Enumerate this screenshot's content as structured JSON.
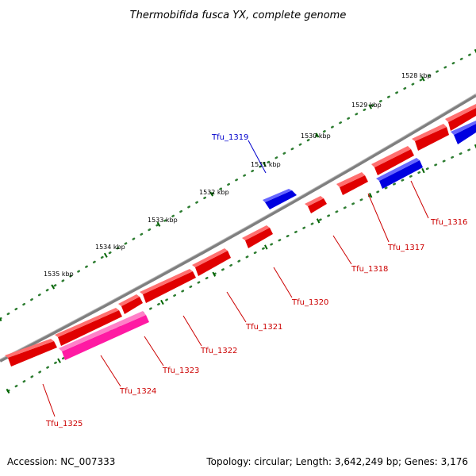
{
  "title": "Thermobifida fusca YX, complete genome",
  "accession": "Accession: NC_007333",
  "topology": "Topology: circular; Length: 3,642,249 bp; Genes: 3,176",
  "colors": {
    "forward_gene": "#ff0000",
    "reverse_gene": "#0000ff",
    "highlight_gene": "#ff1aa3",
    "backbone": "#7f7f7f",
    "tick": "#006400",
    "label_red": "#cc0000",
    "label_blue": "#0000cc"
  },
  "scale_labels": [
    "1528 kbp",
    "1529 kbp",
    "1530 kbp",
    "1531 kbp",
    "1532 kbp",
    "1533 kbp",
    "1534 kbp",
    "1535 kbp"
  ],
  "gene_labels": [
    {
      "name": "Tfu_1316",
      "strand": "forward"
    },
    {
      "name": "Tfu_1317",
      "strand": "forward"
    },
    {
      "name": "Tfu_1318",
      "strand": "forward"
    },
    {
      "name": "Tfu_1319",
      "strand": "reverse"
    },
    {
      "name": "Tfu_1320",
      "strand": "forward"
    },
    {
      "name": "Tfu_1321",
      "strand": "forward"
    },
    {
      "name": "Tfu_1322",
      "strand": "forward"
    },
    {
      "name": "Tfu_1323",
      "strand": "forward"
    },
    {
      "name": "Tfu_1324",
      "strand": "forward"
    },
    {
      "name": "Tfu_1325",
      "strand": "forward"
    }
  ]
}
